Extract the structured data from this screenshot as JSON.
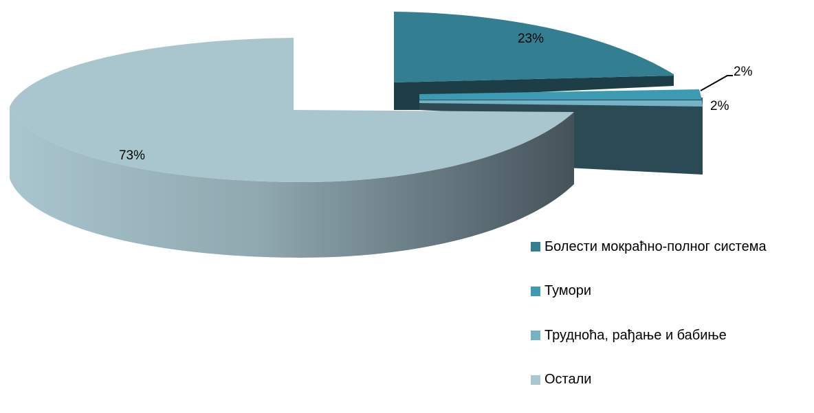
{
  "chart_data": {
    "type": "pie",
    "three_d": true,
    "slices": [
      {
        "name": "Болести мокраћно-полног система",
        "value": 23,
        "label": "23%",
        "color": "#337E90",
        "exploded": true
      },
      {
        "name": "Тумори",
        "value": 2,
        "label": "2%",
        "color": "#3C9BB3",
        "exploded": true
      },
      {
        "name": "Трудноћа, рађање и бабиње",
        "value": 2,
        "label": "2%",
        "color": "#74B3C5",
        "exploded": true
      },
      {
        "name": "Остали",
        "value": 73,
        "label": "73%",
        "color": "#A9C7D0",
        "exploded": false
      }
    ],
    "legend_position": "bottom-right"
  }
}
